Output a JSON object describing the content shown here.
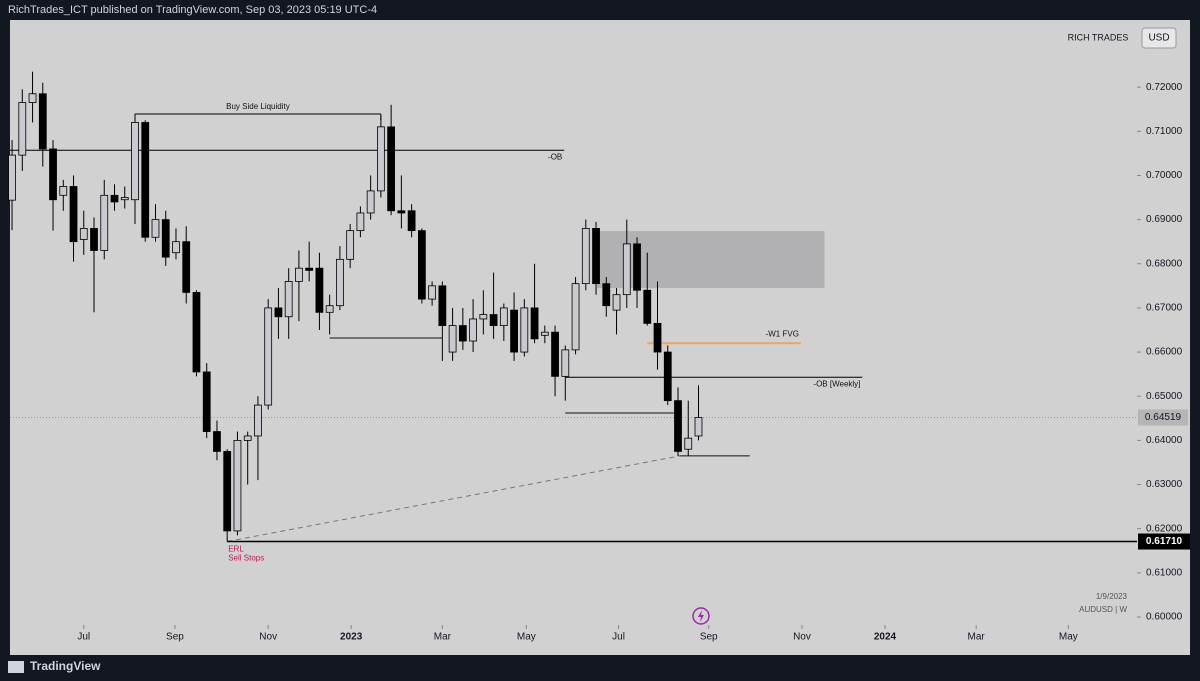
{
  "header": {
    "text": "RichTrades_ICT published on TradingView.com, Sep 03, 2023 05:19 UTC-4"
  },
  "footer": {
    "brand": "TradingView"
  },
  "chart_data": {
    "type": "candlestick",
    "account": "RICH TRADES",
    "currency": "USD",
    "date_note": "1/9/2023",
    "symbol": "AUDUSD | W",
    "up_color": "#c9cacf",
    "down_color": "#000000",
    "x": [
      0,
      1,
      2,
      3,
      4,
      5,
      6,
      7,
      8,
      9,
      10,
      11,
      12,
      13,
      14,
      15,
      16,
      17,
      18,
      19,
      20,
      21,
      22,
      23,
      24,
      25,
      26,
      27,
      28,
      29,
      30,
      31,
      32,
      33,
      34,
      35,
      36,
      37,
      38,
      39,
      40,
      41,
      42,
      43,
      44,
      45,
      46,
      47,
      48,
      49,
      50,
      51,
      52,
      53,
      54,
      55,
      56,
      57,
      58,
      59,
      60,
      61,
      62,
      63,
      64,
      65,
      66,
      67
    ],
    "open": [
      0.6944,
      0.7046,
      0.7165,
      0.7185,
      0.706,
      0.6955,
      0.6975,
      0.6855,
      0.688,
      0.683,
      0.6955,
      0.6945,
      0.6945,
      0.712,
      0.686,
      0.69,
      0.6825,
      0.685,
      0.6735,
      0.6555,
      0.642,
      0.6375,
      0.6195,
      0.64,
      0.641,
      0.648,
      0.67,
      0.668,
      0.676,
      0.679,
      0.679,
      0.669,
      0.6705,
      0.681,
      0.6875,
      0.6915,
      0.6965,
      0.711,
      0.692,
      0.692,
      0.6875,
      0.672,
      0.675,
      0.66,
      0.666,
      0.6625,
      0.6675,
      0.6685,
      0.666,
      0.6695,
      0.66,
      0.67,
      0.6638,
      0.6645,
      0.6545,
      0.6605,
      0.6755,
      0.688,
      0.6755,
      0.6695,
      0.673,
      0.6845,
      0.674,
      0.6665,
      0.66,
      0.649,
      0.638,
      0.641
    ],
    "high": [
      0.708,
      0.7195,
      0.7235,
      0.721,
      0.708,
      0.699,
      0.7,
      0.692,
      0.6905,
      0.699,
      0.698,
      0.6975,
      0.7135,
      0.7125,
      0.6935,
      0.692,
      0.688,
      0.6885,
      0.674,
      0.6575,
      0.6445,
      0.638,
      0.642,
      0.642,
      0.65,
      0.672,
      0.6745,
      0.679,
      0.683,
      0.685,
      0.6825,
      0.673,
      0.684,
      0.689,
      0.693,
      0.7,
      0.7135,
      0.716,
      0.7,
      0.6935,
      0.688,
      0.676,
      0.676,
      0.67,
      0.67,
      0.672,
      0.674,
      0.678,
      0.671,
      0.6735,
      0.672,
      0.68,
      0.666,
      0.666,
      0.6615,
      0.677,
      0.69,
      0.6895,
      0.677,
      0.6745,
      0.69,
      0.686,
      0.6825,
      0.676,
      0.6615,
      0.652,
      0.649,
      0.6525
    ],
    "low": [
      0.6876,
      0.701,
      0.712,
      0.702,
      0.6875,
      0.692,
      0.6805,
      0.682,
      0.669,
      0.681,
      0.692,
      0.6925,
      0.689,
      0.685,
      0.685,
      0.6795,
      0.681,
      0.671,
      0.6545,
      0.6405,
      0.6355,
      0.6171,
      0.6185,
      0.63,
      0.631,
      0.647,
      0.663,
      0.663,
      0.667,
      0.676,
      0.665,
      0.664,
      0.6695,
      0.679,
      0.686,
      0.69,
      0.695,
      0.691,
      0.688,
      0.686,
      0.671,
      0.6705,
      0.658,
      0.658,
      0.6605,
      0.66,
      0.664,
      0.663,
      0.6625,
      0.658,
      0.659,
      0.662,
      0.662,
      0.65,
      0.649,
      0.6595,
      0.674,
      0.673,
      0.668,
      0.664,
      0.67,
      0.67,
      0.666,
      0.656,
      0.648,
      0.6365,
      0.6365,
      0.64
    ],
    "close": [
      0.7046,
      0.7165,
      0.7185,
      0.706,
      0.6945,
      0.6975,
      0.685,
      0.688,
      0.683,
      0.6955,
      0.694,
      0.695,
      0.712,
      0.686,
      0.69,
      0.6815,
      0.685,
      0.6735,
      0.6555,
      0.642,
      0.6375,
      0.6195,
      0.64,
      0.641,
      0.648,
      0.67,
      0.668,
      0.676,
      0.679,
      0.6785,
      0.669,
      0.6705,
      0.681,
      0.6875,
      0.6915,
      0.6965,
      0.711,
      0.692,
      0.6915,
      0.6875,
      0.672,
      0.675,
      0.666,
      0.666,
      0.6625,
      0.6675,
      0.6685,
      0.666,
      0.67,
      0.66,
      0.67,
      0.663,
      0.6645,
      0.6545,
      0.6605,
      0.6755,
      0.688,
      0.6755,
      0.6705,
      0.673,
      0.6845,
      0.674,
      0.6665,
      0.66,
      0.649,
      0.6375,
      0.6405,
      0.64519
    ],
    "xlim": [
      -0.2,
      109.8
    ],
    "ylim": [
      0.5914,
      0.7352
    ],
    "xticks": [
      {
        "value": 7.0,
        "label": "Jul"
      },
      {
        "value": 15.9,
        "label": "Sep"
      },
      {
        "value": 25.0,
        "label": "Nov"
      },
      {
        "value": 33.1,
        "label": "2023"
      },
      {
        "value": 42.0,
        "label": "Mar"
      },
      {
        "value": 50.2,
        "label": "May"
      },
      {
        "value": 59.2,
        "label": "Jul"
      },
      {
        "value": 68.0,
        "label": "Sep"
      },
      {
        "value": 77.1,
        "label": "Nov"
      },
      {
        "value": 85.2,
        "label": "2024"
      },
      {
        "value": 94.1,
        "label": "Mar"
      },
      {
        "value": 103.1,
        "label": "May"
      }
    ],
    "yticks": [
      {
        "value": 0.6,
        "label": "0.60000"
      },
      {
        "value": 0.61,
        "label": "0.61000"
      },
      {
        "value": 0.62,
        "label": "0.62000"
      },
      {
        "value": 0.63,
        "label": "0.63000"
      },
      {
        "value": 0.64,
        "label": "0.64000"
      },
      {
        "value": 0.65,
        "label": "0.65000"
      },
      {
        "value": 0.66,
        "label": "0.66000"
      },
      {
        "value": 0.67,
        "label": "0.67000"
      },
      {
        "value": 0.68,
        "label": "0.68000"
      },
      {
        "value": 0.69,
        "label": "0.69000"
      },
      {
        "value": 0.7,
        "label": "0.70000"
      },
      {
        "value": 0.71,
        "label": "0.71000"
      },
      {
        "value": 0.72,
        "label": "0.72000"
      }
    ],
    "last_price": 0.64519,
    "erl": {
      "value": 0.6171,
      "label": "0.61710",
      "notes": [
        "ERL",
        "Sell Stops"
      ],
      "x": 21
    },
    "levels": [
      {
        "label": "Buy Side Liquidity",
        "y": 0.7139,
        "x": [
          12,
          36
        ],
        "color": "#000000"
      },
      {
        "label": "-OB",
        "y": 0.7057,
        "x": [
          -0.2,
          53.9
        ],
        "color": "#000000"
      },
      {
        "label": "-W1 FVG",
        "y": 0.662,
        "x": [
          62,
          77
        ],
        "color": "#f5a35a"
      },
      {
        "label": "-OB [Weekly]",
        "y": 0.6543,
        "x": [
          54,
          83
        ],
        "color": "#000000"
      }
    ],
    "lines": [
      {
        "y": 0.6632,
        "x": [
          31,
          42
        ]
      },
      {
        "y": 0.6462,
        "x": [
          54,
          65
        ]
      },
      {
        "y": 0.6365,
        "x": [
          65,
          72
        ]
      }
    ],
    "trend": {
      "x": [
        21,
        65.2
      ],
      "y": [
        0.6171,
        0.6365
      ]
    },
    "zone": {
      "x": [
        57.1,
        79.3
      ],
      "y": [
        0.6745,
        0.6874
      ]
    }
  }
}
